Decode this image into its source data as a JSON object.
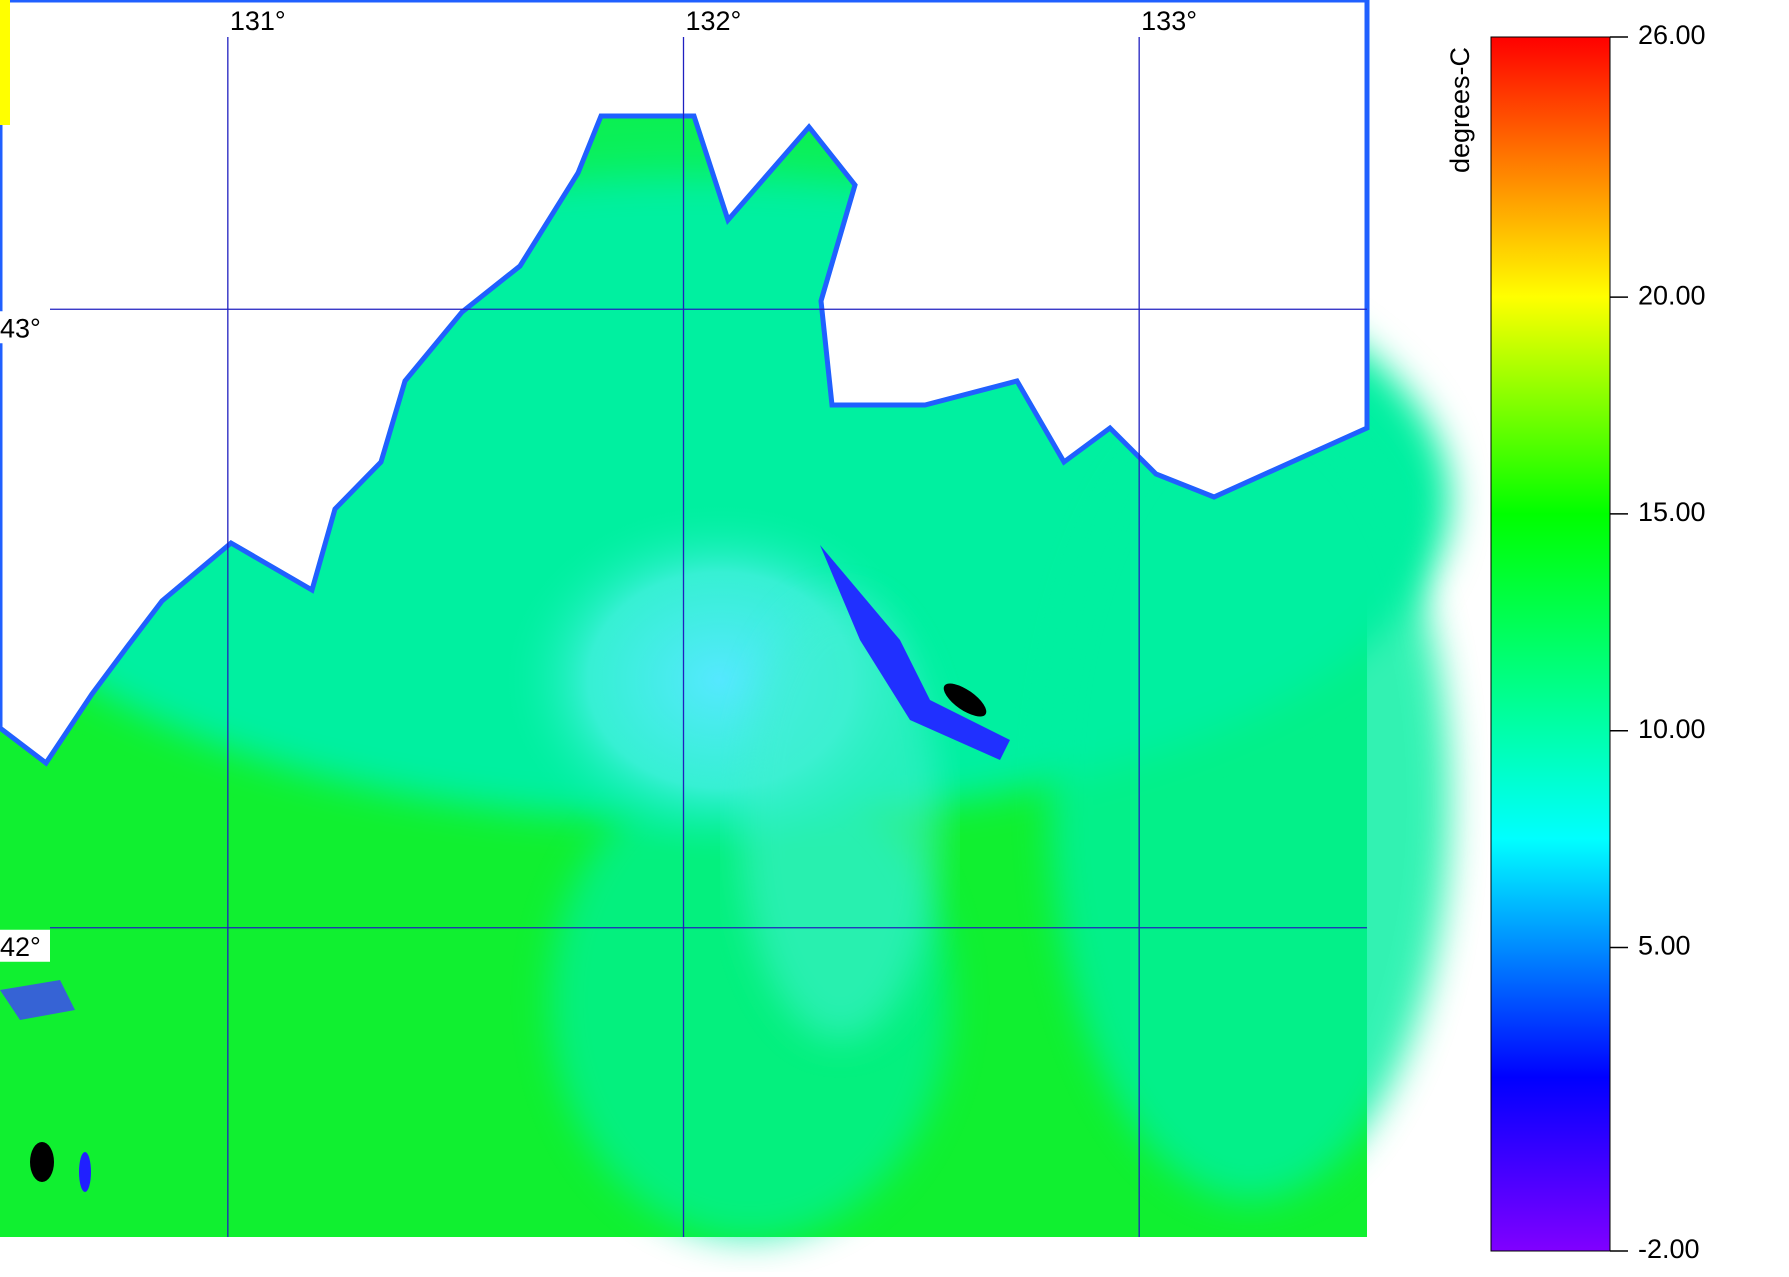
{
  "map": {
    "type": "raster",
    "xlim": [
      130.5,
      133.5
    ],
    "ylim": [
      41.5,
      43.5
    ],
    "xticks": [
      {
        "value": 131,
        "label": "131°"
      },
      {
        "value": 132,
        "label": "132°"
      },
      {
        "value": 133,
        "label": "133°"
      }
    ],
    "yticks": [
      {
        "value": 43,
        "label": "43°"
      },
      {
        "value": 42,
        "label": "42°"
      }
    ],
    "grid_color": "#2020c0",
    "colorbar": {
      "label": "degrees-C",
      "lim": [
        -2,
        26
      ],
      "ticks": [
        {
          "value": 26,
          "label": "26.00"
        },
        {
          "value": 20,
          "label": "20.00"
        },
        {
          "value": 15,
          "label": "15.00"
        },
        {
          "value": 10,
          "label": "10.00"
        },
        {
          "value": 5,
          "label": "5.00"
        },
        {
          "value": -2,
          "label": "-2.00"
        }
      ],
      "stops": [
        {
          "value": -2,
          "color": "#8000ff"
        },
        {
          "value": 2,
          "color": "#0000ff"
        },
        {
          "value": 7.5,
          "color": "#00ffff"
        },
        {
          "value": 15,
          "color": "#00ff00"
        },
        {
          "value": 20,
          "color": "#ffff00"
        },
        {
          "value": 23,
          "color": "#ff8000"
        },
        {
          "value": 26,
          "color": "#ff0000"
        }
      ]
    }
  }
}
